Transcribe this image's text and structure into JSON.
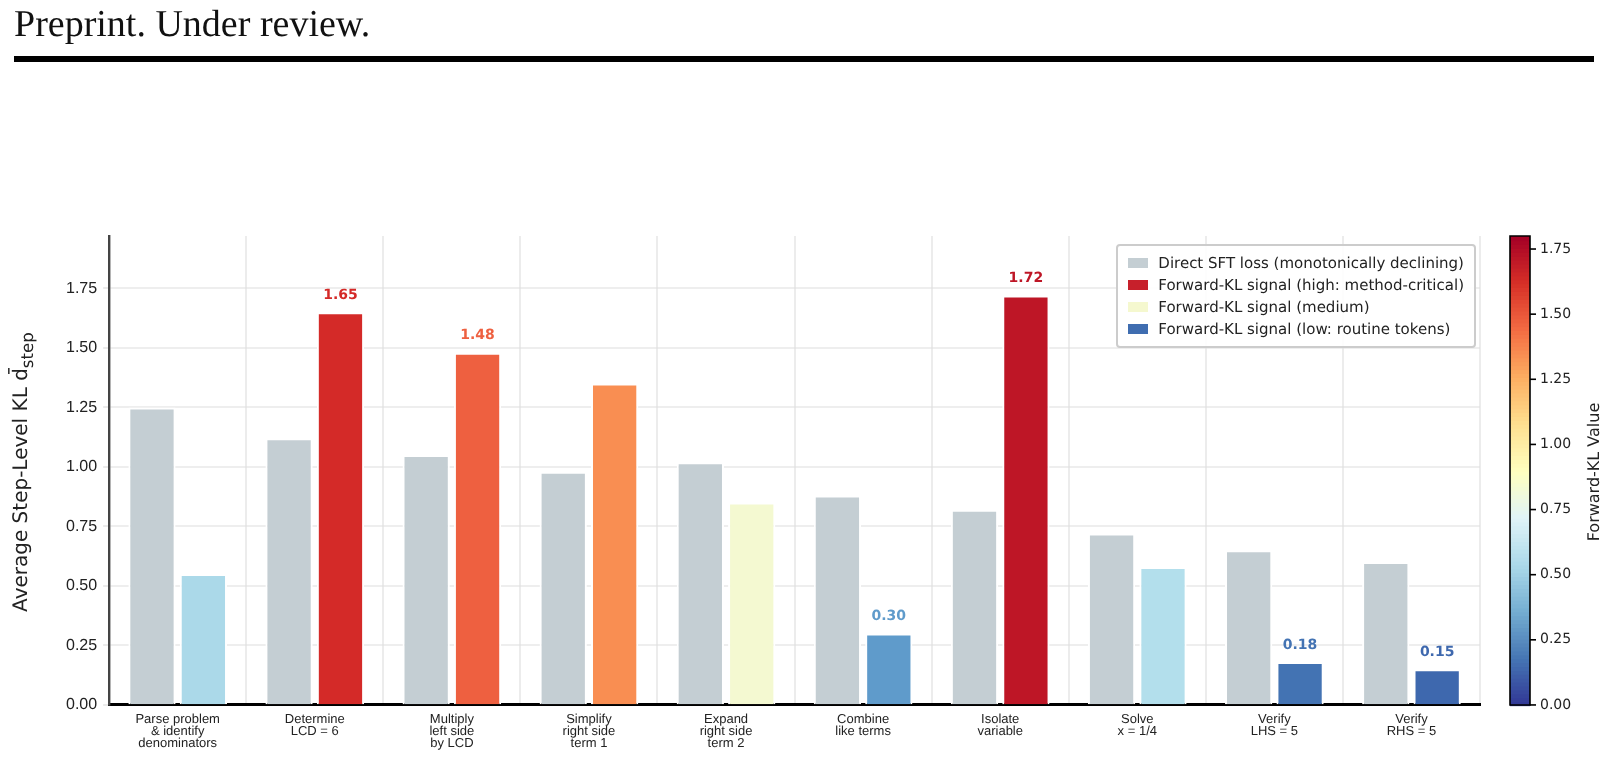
{
  "chart_data": {
    "type": "bar",
    "annotations": [
      "Preprint. Under review."
    ],
    "ylabel": "Average Step-Level KL  d̄$_{step}$",
    "clabel": "Forward-KL Value",
    "categories": [
      "Parse problem\n& identify\ndenominators",
      "Determine\nLCD = 6",
      "Multiply\nleft side\nby LCD",
      "Simplify\nright side\nterm 1",
      "Expand\nright side\nterm 2",
      "Combine\nlike terms",
      "Isolate\nvariable",
      "Solve\nx = 1/4",
      "Verify\nLHS = 5",
      "Verify\nRHS = 5"
    ],
    "series": [
      {
        "name": "Direct SFT loss (monotonically declining)",
        "color": "#c4ced3",
        "values": [
          1.25,
          1.12,
          1.05,
          0.98,
          1.02,
          0.88,
          0.82,
          0.72,
          0.65,
          0.6
        ]
      },
      {
        "name": "Forward-KL signal (high: method-critical)",
        "color": "#c7202b",
        "values": [
          null,
          1.65,
          1.48,
          null,
          null,
          null,
          1.72,
          null,
          null,
          null
        ],
        "colors": [
          null,
          "#d42a28",
          "#ee6040",
          null,
          null,
          null,
          "#be1626",
          null,
          null,
          null
        ],
        "value_labels": [
          null,
          "1.65",
          "1.48",
          null,
          null,
          null,
          "1.72",
          null,
          null,
          null
        ]
      },
      {
        "name": "Forward-KL signal (medium)",
        "color": "#f5f8cf",
        "values": [
          0.55,
          null,
          null,
          1.35,
          0.85,
          null,
          null,
          0.58,
          null,
          null
        ],
        "colors": [
          "#abd9e9",
          null,
          null,
          "#f98e52",
          "#f4f9d1",
          null,
          null,
          "#b3dfec",
          null,
          null
        ]
      },
      {
        "name": "Forward-KL signal (low: routine tokens)",
        "color": "#3f6db0",
        "values": [
          null,
          null,
          null,
          null,
          null,
          0.3,
          null,
          null,
          0.18,
          0.15
        ],
        "colors": [
          null,
          null,
          null,
          null,
          null,
          "#5f9bcb",
          null,
          null,
          "#4373b3",
          "#3e68ae"
        ],
        "value_labels": [
          null,
          null,
          null,
          null,
          null,
          "0.30",
          null,
          null,
          "0.18",
          "0.15"
        ]
      }
    ],
    "ylim": [
      0,
      1.97
    ],
    "yticks": [
      {
        "value": 0,
        "label": "0.00"
      },
      {
        "value": 0.25,
        "label": "0.25"
      },
      {
        "value": 0.5,
        "label": "0.50"
      },
      {
        "value": 0.75,
        "label": "0.75"
      },
      {
        "value": 1,
        "label": "1.00"
      },
      {
        "value": 1.25,
        "label": "1.25"
      },
      {
        "value": 1.5,
        "label": "1.50"
      },
      {
        "value": 1.75,
        "label": "1.75"
      }
    ],
    "clim": [
      0,
      1.8
    ],
    "cticks": [
      {
        "value": 0,
        "label": "0.00"
      },
      {
        "value": 0.25,
        "label": "0.25"
      },
      {
        "value": 0.5,
        "label": "0.50"
      },
      {
        "value": 0.75,
        "label": "0.75"
      },
      {
        "value": 1,
        "label": "1.00"
      },
      {
        "value": 1.25,
        "label": "1.25"
      },
      {
        "value": 1.5,
        "label": "1.50"
      },
      {
        "value": 1.75,
        "label": "1.75"
      }
    ],
    "grid": true,
    "legend": "top right"
  }
}
